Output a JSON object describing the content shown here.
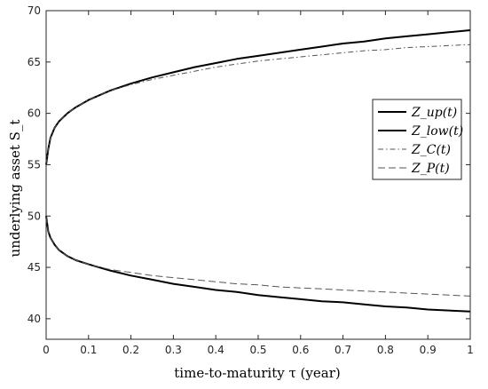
{
  "chart_data": {
    "type": "line",
    "xlabel": "time-to-maturity τ (year)",
    "ylabel": "underlying asset S_t",
    "xlim": [
      0,
      1
    ],
    "ylim": [
      38,
      70
    ],
    "xticks": [
      "0",
      "0.1",
      "0.2",
      "0.3",
      "0.4",
      "0.5",
      "0.6",
      "0.7",
      "0.8",
      "0.9",
      "1"
    ],
    "yticks": [
      "40",
      "45",
      "50",
      "55",
      "60",
      "65",
      "70"
    ],
    "grid": false,
    "legend_position": "right",
    "x": [
      0,
      0.005,
      0.01,
      0.02,
      0.03,
      0.05,
      0.07,
      0.1,
      0.15,
      0.2,
      0.25,
      0.3,
      0.35,
      0.4,
      0.45,
      0.5,
      0.55,
      0.6,
      0.65,
      0.7,
      0.75,
      0.8,
      0.85,
      0.9,
      0.95,
      1.0
    ],
    "series": [
      {
        "name": "Z_up(t)",
        "style": "solid",
        "color": "#000000",
        "values": [
          55.0,
          56.5,
          57.6,
          58.6,
          59.2,
          60.0,
          60.6,
          61.3,
          62.2,
          62.9,
          63.5,
          64.0,
          64.5,
          64.9,
          65.3,
          65.6,
          65.9,
          66.2,
          66.5,
          66.8,
          67.0,
          67.3,
          67.5,
          67.7,
          67.9,
          68.1
        ]
      },
      {
        "name": "Z_low(t)",
        "style": "solid",
        "color": "#000000",
        "values": [
          50.0,
          48.5,
          47.9,
          47.2,
          46.7,
          46.1,
          45.7,
          45.3,
          44.7,
          44.2,
          43.8,
          43.4,
          43.1,
          42.8,
          42.6,
          42.3,
          42.1,
          41.9,
          41.7,
          41.6,
          41.4,
          41.2,
          41.1,
          40.9,
          40.8,
          40.7
        ]
      },
      {
        "name": "Z_C(t)",
        "style": "dashdot",
        "color": "#555555",
        "values": [
          55.0,
          56.5,
          57.6,
          58.6,
          59.2,
          60.0,
          60.6,
          61.3,
          62.2,
          62.8,
          63.3,
          63.7,
          64.1,
          64.5,
          64.8,
          65.1,
          65.3,
          65.5,
          65.7,
          65.9,
          66.1,
          66.2,
          66.4,
          66.5,
          66.6,
          66.7
        ]
      },
      {
        "name": "Z_P(t)",
        "style": "dashed",
        "color": "#555555",
        "values": [
          50.0,
          48.5,
          47.9,
          47.2,
          46.7,
          46.1,
          45.7,
          45.3,
          44.8,
          44.5,
          44.2,
          44.0,
          43.8,
          43.6,
          43.4,
          43.3,
          43.1,
          43.0,
          42.9,
          42.8,
          42.7,
          42.6,
          42.5,
          42.4,
          42.3,
          42.2
        ]
      }
    ]
  }
}
